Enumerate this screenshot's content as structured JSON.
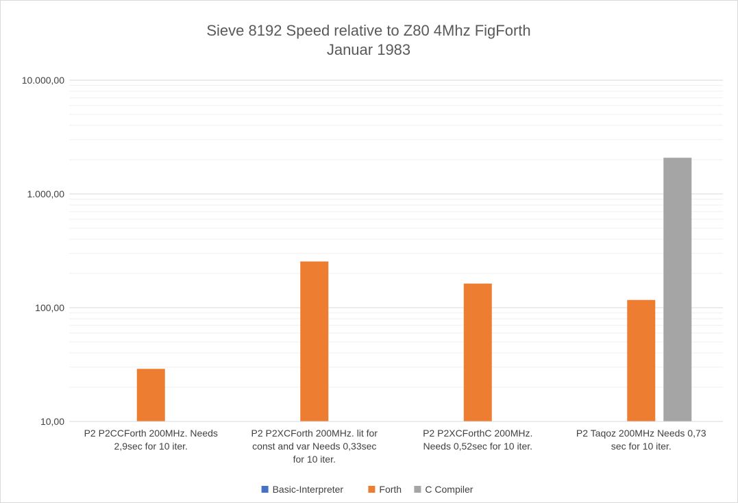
{
  "chart_data": {
    "type": "bar",
    "title": [
      "Sieve 8192 Speed relative to Z80 4Mhz FigForth",
      "Januar 1983"
    ],
    "y_scale": "log",
    "ylim": [
      10,
      10000
    ],
    "y_ticks": [
      "10,00",
      "100,00",
      "1.000,00",
      "10.000,00"
    ],
    "categories": [
      [
        "P2 P2CCForth 200MHz. Needs",
        "2,9sec for 10 iter."
      ],
      [
        "P2 P2XCForth 200MHz. lit for",
        "const and var Needs 0,33sec",
        "for 10 iter."
      ],
      [
        "P2 P2XCForthC 200MHz.",
        "Needs 0,52sec for 10 iter."
      ],
      [
        "P2 Taqoz 200MHz Needs 0,73",
        "sec for 10 iter."
      ]
    ],
    "series": [
      {
        "name": "Basic-Interpreter",
        "color": "#4472c4",
        "values": [
          null,
          null,
          null,
          null
        ]
      },
      {
        "name": "Forth",
        "color": "#ed7d31",
        "values": [
          29,
          255,
          163,
          117
        ]
      },
      {
        "name": "C Compiler",
        "color": "#a5a5a5",
        "values": [
          null,
          null,
          null,
          2080
        ]
      }
    ],
    "grid": true,
    "legend_position": "bottom"
  }
}
